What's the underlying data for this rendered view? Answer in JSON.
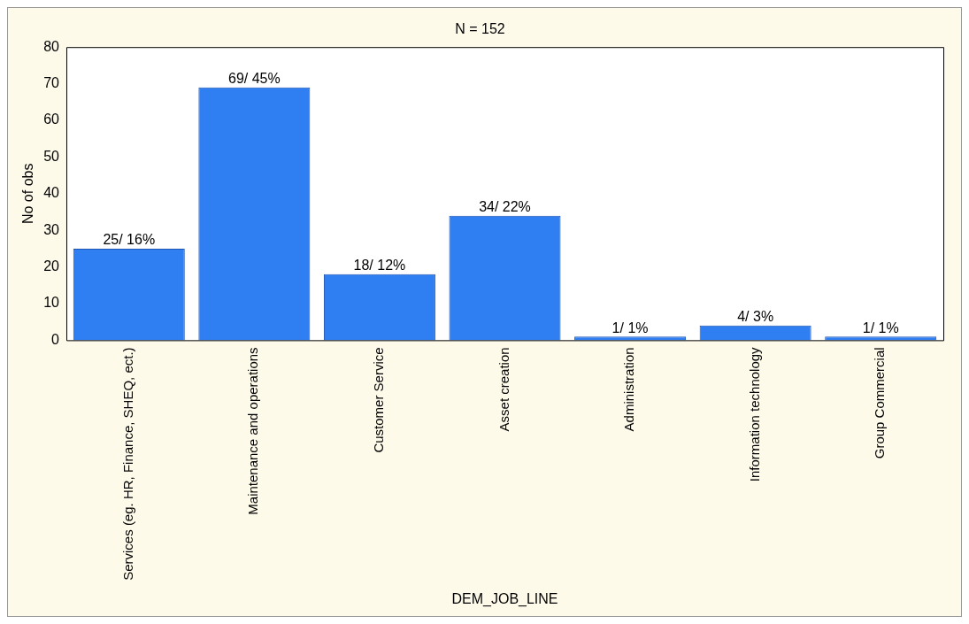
{
  "chart_data": {
    "type": "bar",
    "title": "N = 152",
    "xlabel": "DEM_JOB_LINE",
    "ylabel": "No of obs",
    "categories": [
      "Services (eg. HR, Finance, SHEQ, ect.)",
      "Maintenance and operations",
      "Customer Service",
      "Asset creation",
      "Administration",
      "Information technology",
      "Group Commercial"
    ],
    "values": [
      25,
      69,
      18,
      34,
      1,
      4,
      1
    ],
    "value_labels": [
      "25/ 16%",
      "69/ 45%",
      "18/ 12%",
      "34/ 22%",
      "1/ 1%",
      "4/ 3%",
      "1/ 1%"
    ],
    "color": "#2f7ff2",
    "ylim": [
      0,
      80
    ],
    "yticks": [
      0,
      10,
      20,
      30,
      40,
      50,
      60,
      70,
      80
    ],
    "grid": false,
    "legend": false
  }
}
